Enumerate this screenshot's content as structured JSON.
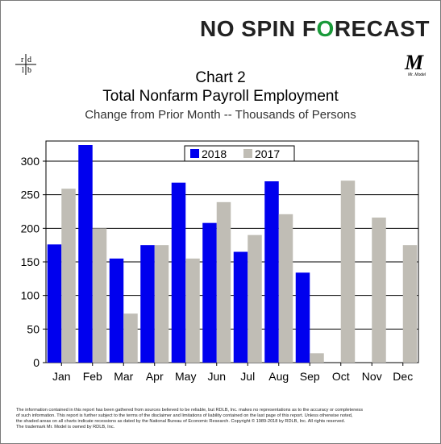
{
  "brand": {
    "no_spin": "NO SPIN",
    "forecast_f": "F",
    "forecast_o": "O",
    "forecast_rest": "RECAST"
  },
  "logo_rdlb": {
    "r": "r",
    "d": "d",
    "l": "l",
    "b": "b"
  },
  "logo_mrmodel": {
    "letter": "M",
    "caption": "Mr. Model"
  },
  "chart_data": {
    "type": "bar",
    "title": "Chart 2",
    "subtitle": "Total Nonfarm Payroll Employment",
    "subtitle2": "Change from Prior Month -- Thousands of Persons",
    "categories": [
      "Jan",
      "Feb",
      "Mar",
      "Apr",
      "May",
      "Jun",
      "Jul",
      "Aug",
      "Sep",
      "Oct",
      "Nov",
      "Dec"
    ],
    "series": [
      {
        "name": "2018",
        "color": "#0000ee",
        "values": [
          176,
          324,
          155,
          175,
          268,
          208,
          165,
          270,
          134,
          null,
          null,
          null
        ]
      },
      {
        "name": "2017",
        "color": "#c0bdb5",
        "values": [
          259,
          200,
          73,
          175,
          155,
          239,
          190,
          221,
          14,
          271,
          216,
          175
        ]
      }
    ],
    "yticks": [
      0,
      50,
      100,
      150,
      200,
      250,
      300
    ],
    "ylim": [
      0,
      330
    ],
    "grid": true,
    "legend": "top-center"
  },
  "footer": {
    "line1": "The information contained in this report has been gathered from sources believed to be reliable, but RDLB, Inc. makes no representations as to the accuracy or completeness",
    "line2": "of such information. This report is further subject to the terms of the disclaimer and limitations of liability contained on the last page of this report. Unless otherwise noted,",
    "line3": "the shaded areas on all charts indicate recessions as dated by the National Bureau of Economic Research. Copyright © 1989-2018 by RDLB, Inc. All rights reserved.",
    "line4": "The trademark Mr. Model is owned by RDLB, Inc."
  }
}
